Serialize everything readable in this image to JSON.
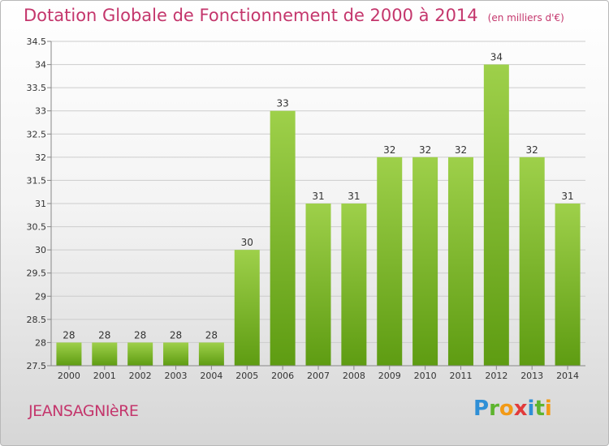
{
  "header": {
    "title": "Dotation Globale de Fonctionnement de 2000 à 2014",
    "unit": "(en milliers d'€)"
  },
  "footer": {
    "place": "JEANSAGNIèRE",
    "brand": {
      "letters": [
        "P",
        "r",
        "o",
        "x",
        "i",
        "t",
        "i"
      ],
      "colors": [
        "#2f8fd6",
        "#5db42e",
        "#f29a16",
        "#e23b3b",
        "#2f8fd6",
        "#5db42e",
        "#f29a16"
      ]
    }
  },
  "colors": {
    "bar_top": "#9ed04a",
    "bar_bottom": "#5e9c12",
    "grid": "#cccccc",
    "accent": "#c4366c"
  },
  "chart_data": {
    "type": "bar",
    "categories": [
      "2000",
      "2001",
      "2002",
      "2003",
      "2004",
      "2005",
      "2006",
      "2007",
      "2008",
      "2009",
      "2010",
      "2011",
      "2012",
      "2013",
      "2014"
    ],
    "values": [
      28,
      28,
      28,
      28,
      28,
      30,
      33,
      31,
      31,
      32,
      32,
      32,
      34,
      32,
      31
    ],
    "ylim": [
      27.5,
      34.5
    ],
    "yticks": [
      "27.5",
      "28",
      "28.5",
      "29",
      "29.5",
      "30",
      "30.5",
      "31",
      "31.5",
      "32",
      "32.5",
      "33",
      "33.5",
      "34",
      "34.5"
    ],
    "grid": true,
    "data_labels": true
  }
}
